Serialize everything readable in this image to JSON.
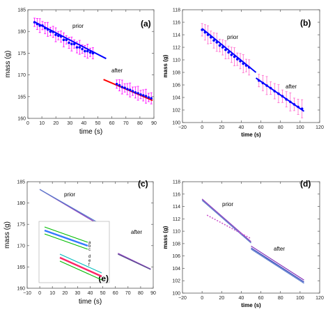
{
  "chart_data": [
    {
      "panel": "(a)",
      "type": "scatter",
      "xlabel": "time (s)",
      "ylabel": "mass (g)",
      "xlim": [
        -5,
        90
      ],
      "ylim": [
        160,
        186
      ],
      "xticks": [
        "0",
        "10",
        "20",
        "30",
        "40",
        "50",
        "60",
        "70",
        "80",
        "90"
      ],
      "yticks": [
        "160",
        "165",
        "170",
        "175",
        "180",
        "185"
      ],
      "annotations": [
        "prior",
        "after"
      ],
      "series": [
        {
          "segment": "prior",
          "color": "#0000ff",
          "line_color": "#0000ff",
          "error_color": "#ff00ff",
          "x": [
            0,
            2,
            4,
            6,
            8,
            10,
            12,
            14,
            16,
            18,
            20,
            22,
            24,
            26,
            28,
            30,
            32,
            34,
            36,
            38,
            40,
            42,
            44
          ],
          "y": [
            183,
            182.6,
            182.2,
            182.2,
            181.6,
            181.3,
            180.8,
            180.7,
            180,
            179.8,
            179.6,
            178.8,
            178.8,
            178.1,
            177.8,
            177.8,
            177,
            177,
            176.6,
            176.1,
            176.1,
            175.8,
            175.6
          ],
          "fit": [
            [
              0,
              183.1
            ],
            [
              54,
              174.3
            ]
          ]
        },
        {
          "segment": "after",
          "color": "#0000ff",
          "line_color": "#ff0000",
          "error_color": "#ff00ff",
          "x": [
            62,
            64,
            66,
            68,
            70,
            72,
            74,
            76,
            78,
            80,
            82,
            84,
            86,
            88
          ],
          "y": [
            168.2,
            167.9,
            167.5,
            167.3,
            167,
            166.8,
            166.5,
            166.2,
            166,
            165.7,
            165.5,
            165.3,
            165,
            164.8
          ],
          "fit": [
            [
              52,
              169.3
            ],
            [
              89,
              164.3
            ]
          ]
        }
      ]
    },
    {
      "panel": "(b)",
      "type": "scatter",
      "xlabel": "time (s)",
      "ylabel": "mass (g)",
      "xlim": [
        -20,
        120
      ],
      "ylim": [
        100,
        118
      ],
      "xticks": [
        "−20",
        "0",
        "20",
        "40",
        "60",
        "80",
        "100",
        "120"
      ],
      "yticks": [
        "100",
        "102",
        "104",
        "106",
        "108",
        "110",
        "112",
        "114",
        "116",
        "118"
      ],
      "annotations": [
        "prior",
        "after"
      ],
      "series": [
        {
          "segment": "prior",
          "color": "#0000ff",
          "line_color": "#0000ff",
          "error_color": "#ff66cc",
          "x": [
            0,
            3,
            6,
            9,
            12,
            15,
            18,
            21,
            24,
            27,
            30,
            33,
            36,
            39,
            42,
            45,
            48
          ],
          "y": [
            114.8,
            114.4,
            114,
            113.6,
            113.1,
            112.8,
            112.3,
            112,
            111.6,
            111.2,
            110.8,
            110.5,
            110.1,
            109.8,
            109.4,
            109.1,
            108.8
          ],
          "fit": [
            [
              0,
              115
            ],
            [
              55,
              108
            ]
          ]
        },
        {
          "segment": "after",
          "color": "#0000ff",
          "line_color": "#0000ff",
          "error_color": "#ff66cc",
          "x": [
            58,
            62,
            66,
            70,
            74,
            78,
            82,
            86,
            90,
            94,
            98,
            102
          ],
          "y": [
            106.7,
            106.3,
            105.9,
            105.5,
            105,
            104.6,
            104.2,
            103.7,
            103.3,
            102.9,
            102.5,
            102.2
          ],
          "fit": [
            [
              55,
              107.1
            ],
            [
              104,
              101.8
            ]
          ]
        }
      ]
    },
    {
      "panel": "(c)",
      "type": "line",
      "xlabel": "time (s)",
      "ylabel": "mass (g)",
      "xlim": [
        -10,
        90
      ],
      "ylim": [
        160,
        185
      ],
      "xticks": [
        "−10",
        "0",
        "10",
        "20",
        "30",
        "40",
        "50",
        "60",
        "70",
        "80",
        "90"
      ],
      "yticks": [
        "160",
        "165",
        "170",
        "175",
        "180",
        "185"
      ],
      "annotations": [
        "prior",
        "after"
      ],
      "series": [
        {
          "segment": "prior",
          "color": "#8e3fbe",
          "x": [
            0,
            45
          ],
          "y": [
            183.2,
            175.3
          ]
        },
        {
          "segment": "prior",
          "color": "#5a7ccc",
          "x": [
            0,
            45
          ],
          "y": [
            183.2,
            175.6
          ]
        },
        {
          "segment": "after",
          "color": "#8e3fbe",
          "x": [
            62,
            88
          ],
          "y": [
            168.2,
            164.5
          ]
        },
        {
          "segment": "after",
          "color": "#5a5090",
          "x": [
            62,
            88
          ],
          "y": [
            168.0,
            164.4
          ]
        }
      ],
      "inset": {
        "tag": "(e)",
        "labels": [
          "a",
          "b",
          "c",
          "d",
          "e",
          "f"
        ],
        "colors": [
          "#00bb00",
          "#3377ff",
          "#00bb00",
          "#00bbbb",
          "#ff2266",
          "#00bb00"
        ]
      }
    },
    {
      "panel": "(d)",
      "type": "line",
      "xlabel": "time (s)",
      "ylabel": "mass (g)",
      "xlim": [
        -20,
        120
      ],
      "ylim": [
        100,
        118
      ],
      "xticks": [
        "−20",
        "0",
        "20",
        "40",
        "60",
        "80",
        "100",
        "120"
      ],
      "yticks": [
        "100",
        "102",
        "104",
        "106",
        "108",
        "110",
        "112",
        "114",
        "116",
        "118"
      ],
      "annotations": [
        "prior",
        "after"
      ],
      "series": [
        {
          "segment": "prior",
          "color": "#8e3fbe",
          "x": [
            0,
            50
          ],
          "y": [
            115.2,
            108.3
          ]
        },
        {
          "segment": "prior",
          "color": "#5a7ccc",
          "x": [
            0,
            50
          ],
          "y": [
            115.0,
            108.1
          ]
        },
        {
          "segment": "prior-dashed",
          "color": "#cc55cc",
          "x": [
            5,
            50
          ],
          "y": [
            112.6,
            108.8
          ]
        },
        {
          "segment": "after",
          "color": "#8e3fbe",
          "x": [
            50,
            104
          ],
          "y": [
            107.6,
            102.1
          ]
        },
        {
          "segment": "after",
          "color": "#5a7ccc",
          "x": [
            50,
            104
          ],
          "y": [
            107.1,
            101.6
          ]
        },
        {
          "segment": "after",
          "color": "#3344bb",
          "x": [
            50,
            104
          ],
          "y": [
            107.3,
            101.8
          ]
        }
      ]
    }
  ]
}
